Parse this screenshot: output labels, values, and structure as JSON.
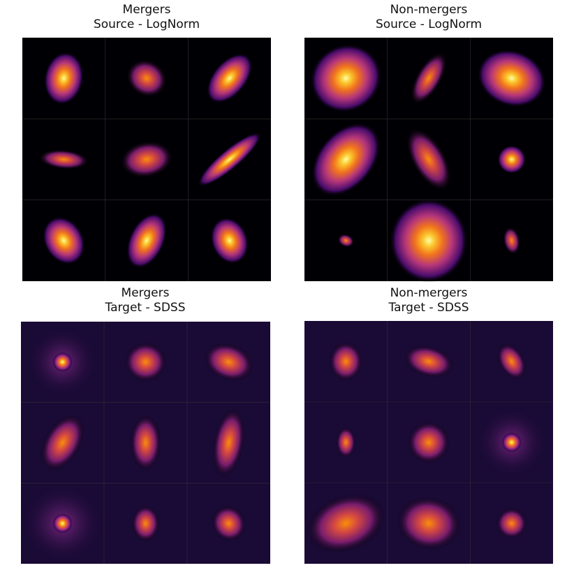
{
  "panels": [
    {
      "title": [
        "Mergers",
        "Source - LogNorm"
      ]
    },
    {
      "title": [
        "Non-mergers",
        "Source - LogNorm"
      ]
    },
    {
      "title": [
        "Mergers",
        "Target - SDSS"
      ]
    },
    {
      "title": [
        "Non-mergers",
        "Target - SDSS"
      ]
    }
  ]
}
